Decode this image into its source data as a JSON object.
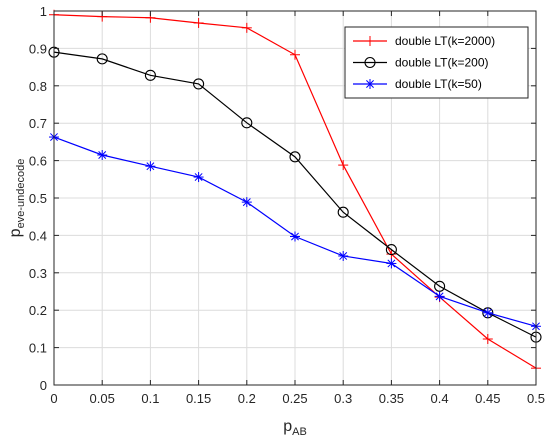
{
  "chart_data": {
    "type": "line",
    "xlabel_main": "p",
    "xlabel_sub": "AB",
    "ylabel_main": "p",
    "ylabel_sub": "eve-undecode",
    "xlim": [
      0,
      0.5
    ],
    "ylim": [
      0,
      1
    ],
    "xticks": [
      "0",
      "0.05",
      "0.1",
      "0.15",
      "0.2",
      "0.25",
      "0.3",
      "0.35",
      "0.4",
      "0.45",
      "0.5"
    ],
    "yticks": [
      "0",
      "0.1",
      "0.2",
      "0.3",
      "0.4",
      "0.5",
      "0.6",
      "0.7",
      "0.8",
      "0.9",
      "1"
    ],
    "grid": true,
    "legend_position": "top-right",
    "x": [
      0,
      0.05,
      0.1,
      0.15,
      0.2,
      0.25,
      0.3,
      0.35,
      0.4,
      0.45,
      0.5
    ],
    "series": [
      {
        "name": "double LT(k=2000)",
        "color": "#ff0000",
        "marker": "plus",
        "values": [
          0.99,
          0.985,
          0.982,
          0.968,
          0.955,
          0.883,
          0.588,
          0.35,
          0.235,
          0.123,
          0.045
        ]
      },
      {
        "name": "double LT(k=200)",
        "color": "#000000",
        "marker": "circle",
        "values": [
          0.89,
          0.872,
          0.828,
          0.805,
          0.701,
          0.61,
          0.462,
          0.362,
          0.264,
          0.193,
          0.128
        ]
      },
      {
        "name": "double LT(k=50)",
        "color": "#0000ff",
        "marker": "asterisk",
        "values": [
          0.663,
          0.615,
          0.585,
          0.556,
          0.489,
          0.397,
          0.345,
          0.325,
          0.237,
          0.193,
          0.157
        ]
      }
    ]
  }
}
